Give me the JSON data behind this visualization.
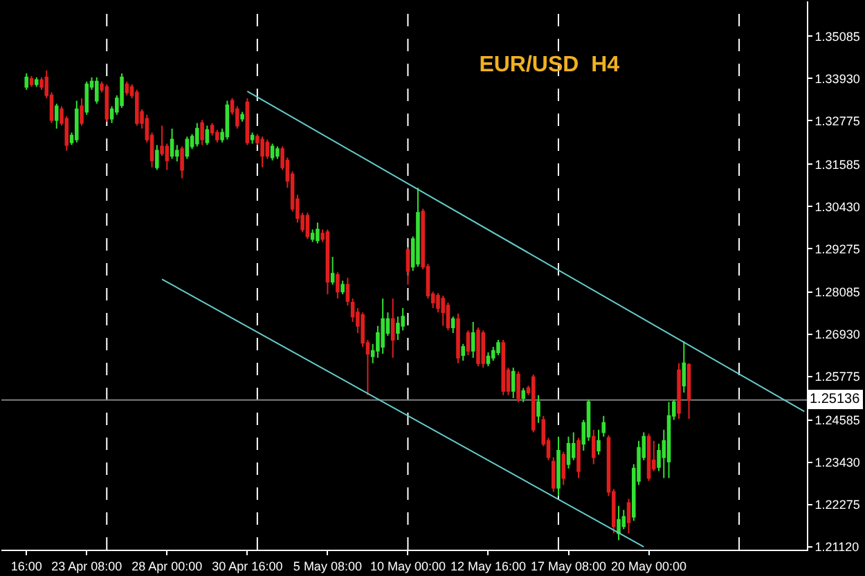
{
  "chart_data": {
    "type": "candlestick",
    "title": "EUR/USD  H4",
    "categories": [
      "16:00",
      null,
      null,
      null,
      null,
      null,
      null,
      null,
      null,
      null,
      null,
      null,
      "23 Apr 08:00",
      null,
      null,
      null,
      null,
      null,
      null,
      null,
      null,
      null,
      null,
      null,
      null,
      null,
      null,
      null,
      "28 Apr 00:00",
      null,
      null,
      null,
      null,
      null,
      null,
      null,
      null,
      null,
      null,
      null,
      null,
      null,
      null,
      null,
      "30 Apr 16:00",
      null,
      null,
      null,
      null,
      null,
      null,
      null,
      null,
      null,
      null,
      null,
      null,
      null,
      null,
      null,
      "5 May 08:00",
      null,
      null,
      null,
      null,
      null,
      null,
      null,
      null,
      null,
      null,
      null,
      null,
      null,
      null,
      null,
      "10 May 00:00",
      null,
      null,
      null,
      null,
      null,
      null,
      null,
      null,
      null,
      null,
      null,
      null,
      null,
      null,
      null,
      "12 May 16:00",
      null,
      null,
      null,
      null,
      null,
      null,
      null,
      null,
      null,
      null,
      null,
      null,
      null,
      null,
      null,
      "17 May 08:00",
      null,
      null,
      null,
      null,
      null,
      null,
      null,
      null,
      null,
      null,
      null,
      null,
      null,
      null,
      null,
      "20 May 00:00",
      null,
      null,
      null,
      null,
      null,
      null,
      null,
      null,
      null,
      null,
      null,
      null,
      null,
      null,
      null,
      null,
      null,
      null,
      null,
      null,
      null,
      null,
      null,
      null,
      null,
      null,
      null,
      null,
      null,
      null,
      null
    ],
    "ohlc": [
      [
        1.337,
        1.3407,
        1.3362,
        1.3396
      ],
      [
        1.3392,
        1.34,
        1.337,
        1.3377
      ],
      [
        1.3377,
        1.3396,
        1.337,
        1.3389
      ],
      [
        1.3389,
        1.3396,
        1.3362,
        1.337
      ],
      [
        1.3396,
        1.3415,
        1.3339,
        1.3347
      ],
      [
        1.3347,
        1.3355,
        1.3271,
        1.3279
      ],
      [
        1.3279,
        1.3324,
        1.3256,
        1.3317
      ],
      [
        1.3309,
        1.3317,
        1.3264,
        1.3271
      ],
      [
        1.3283,
        1.329,
        1.3196,
        1.3211
      ],
      [
        1.3218,
        1.3245,
        1.3211,
        1.3237
      ],
      [
        1.3226,
        1.3332,
        1.3218,
        1.3309
      ],
      [
        1.3317,
        1.3339,
        1.3264,
        1.3271
      ],
      [
        1.3302,
        1.3385,
        1.3294,
        1.3377
      ],
      [
        1.337,
        1.3396,
        1.3362,
        1.3385
      ],
      [
        1.3332,
        1.3396,
        1.3324,
        1.3385
      ],
      [
        1.3377,
        1.3385,
        1.3355,
        1.3362
      ],
      [
        1.337,
        1.3377,
        1.3275,
        1.3283
      ],
      [
        1.3283,
        1.3317,
        1.3271,
        1.3309
      ],
      [
        1.3302,
        1.3347,
        1.3294,
        1.3339
      ],
      [
        1.332,
        1.3407,
        1.3313,
        1.3396
      ],
      [
        1.3377,
        1.3385,
        1.3347,
        1.3355
      ],
      [
        1.337,
        1.3377,
        1.3339,
        1.3347
      ],
      [
        1.3355,
        1.3362,
        1.3264,
        1.3271
      ],
      [
        1.3302,
        1.3309,
        1.3256,
        1.3271
      ],
      [
        1.3283,
        1.3294,
        1.3218,
        1.3226
      ],
      [
        1.3237,
        1.3245,
        1.315,
        1.3169
      ],
      [
        1.315,
        1.3211,
        1.3143,
        1.3196
      ],
      [
        1.3207,
        1.3264,
        1.3181,
        1.3188
      ],
      [
        1.3207,
        1.3215,
        1.3143,
        1.3169
      ],
      [
        1.3181,
        1.3256,
        1.3173,
        1.3226
      ],
      [
        1.3181,
        1.3211,
        1.3166,
        1.3196
      ],
      [
        1.32,
        1.3207,
        1.312,
        1.3143
      ],
      [
        1.3181,
        1.3234,
        1.3173,
        1.3226
      ],
      [
        1.3207,
        1.3241,
        1.32,
        1.3234
      ],
      [
        1.3215,
        1.3271,
        1.3207,
        1.3256
      ],
      [
        1.3271,
        1.3279,
        1.3211,
        1.3226
      ],
      [
        1.3218,
        1.3264,
        1.3211,
        1.3252
      ],
      [
        1.3264,
        1.3271,
        1.3237,
        1.3245
      ],
      [
        1.3245,
        1.3252,
        1.3218,
        1.3226
      ],
      [
        1.3226,
        1.3256,
        1.3218,
        1.3245
      ],
      [
        1.3234,
        1.3332,
        1.3226,
        1.332
      ],
      [
        1.3332,
        1.3339,
        1.3294,
        1.3302
      ],
      [
        1.3309,
        1.3317,
        1.3256,
        1.3264
      ],
      [
        1.3283,
        1.3302,
        1.3275,
        1.3294
      ],
      [
        1.3328,
        1.3339,
        1.3211,
        1.3218
      ],
      [
        1.3226,
        1.3245,
        1.3215,
        1.3237
      ],
      [
        1.3234,
        1.3241,
        1.3211,
        1.3218
      ],
      [
        1.3226,
        1.3234,
        1.315,
        1.3181
      ],
      [
        1.3218,
        1.3226,
        1.3173,
        1.3181
      ],
      [
        1.3177,
        1.3215,
        1.3169,
        1.3207
      ],
      [
        1.3181,
        1.3207,
        1.3173,
        1.32
      ],
      [
        1.32,
        1.3207,
        1.3143,
        1.315
      ],
      [
        1.3169,
        1.3177,
        1.3094,
        1.3113
      ],
      [
        1.3131,
        1.3139,
        1.3029,
        1.3037
      ],
      [
        1.3063,
        1.3075,
        1.2999,
        1.3011
      ],
      [
        1.3018,
        1.3026,
        1.2973,
        1.298
      ],
      [
        1.3018,
        1.3026,
        1.2954,
        1.2961
      ],
      [
        1.2954,
        1.298,
        1.2946,
        1.2969
      ],
      [
        1.295,
        1.2999,
        1.2942,
        1.298
      ],
      [
        1.2969,
        1.298,
        1.2946,
        1.2954
      ],
      [
        1.2973,
        1.298,
        1.2803,
        1.2837
      ],
      [
        1.2837,
        1.2905,
        1.2829,
        1.2859
      ],
      [
        1.2856,
        1.2863,
        1.2791,
        1.281
      ],
      [
        1.281,
        1.284,
        1.2803,
        1.2829
      ],
      [
        1.2829,
        1.2848,
        1.2772,
        1.2784
      ],
      [
        1.278,
        1.2791,
        1.2727,
        1.2742
      ],
      [
        1.2753,
        1.2765,
        1.2697,
        1.2716
      ],
      [
        1.2746,
        1.2753,
        1.2659,
        1.267
      ],
      [
        1.267,
        1.2678,
        1.2527,
        1.264
      ],
      [
        1.2633,
        1.2667,
        1.2614,
        1.2648
      ],
      [
        1.2648,
        1.2716,
        1.2629,
        1.2697
      ],
      [
        1.2659,
        1.2791,
        1.264,
        1.2735
      ],
      [
        1.2697,
        1.2753,
        1.2689,
        1.2735
      ],
      [
        1.2735,
        1.2791,
        1.2629,
        1.2678
      ],
      [
        1.2697,
        1.2742,
        1.2678,
        1.2723
      ],
      [
        1.2716,
        1.2765,
        1.2704,
        1.2742
      ],
      [
        1.2924,
        1.2931,
        1.2829,
        1.2867
      ],
      [
        1.2878,
        1.2961,
        1.2867,
        1.2954
      ],
      [
        1.2886,
        1.3094,
        1.2878,
        1.3026
      ],
      [
        1.3029,
        1.3037,
        1.2871,
        1.2878
      ],
      [
        1.2878,
        1.2886,
        1.2791,
        1.2799
      ],
      [
        1.2803,
        1.281,
        1.2765,
        1.278
      ],
      [
        1.2799,
        1.2806,
        1.2753,
        1.2765
      ],
      [
        1.2791,
        1.2799,
        1.2716,
        1.2753
      ],
      [
        1.2772,
        1.278,
        1.2704,
        1.2712
      ],
      [
        1.2712,
        1.2742,
        1.2697,
        1.2735
      ],
      [
        1.2735,
        1.275,
        1.2614,
        1.2629
      ],
      [
        1.2636,
        1.2667,
        1.2621,
        1.2659
      ],
      [
        1.2697,
        1.2704,
        1.2636,
        1.2648
      ],
      [
        1.2648,
        1.2727,
        1.2629,
        1.2697
      ],
      [
        1.2704,
        1.2712,
        1.2606,
        1.2614
      ],
      [
        1.2697,
        1.2704,
        1.2602,
        1.2614
      ],
      [
        1.2614,
        1.2644,
        1.2606,
        1.2633
      ],
      [
        1.2629,
        1.2659,
        1.2621,
        1.2648
      ],
      [
        1.2644,
        1.2678,
        1.2636,
        1.267
      ],
      [
        1.267,
        1.2678,
        1.2527,
        1.2538
      ],
      [
        1.2595,
        1.2602,
        1.2527,
        1.2538
      ],
      [
        1.2538,
        1.2602,
        1.2519,
        1.2591
      ],
      [
        1.2583,
        1.2591,
        1.2508,
        1.2519
      ],
      [
        1.2519,
        1.2546,
        1.2508,
        1.2538
      ],
      [
        1.2546,
        1.2553,
        1.2527,
        1.2534
      ],
      [
        1.2576,
        1.2583,
        1.2425,
        1.2432
      ],
      [
        1.247,
        1.2527,
        1.2451,
        1.2508
      ],
      [
        1.2459,
        1.247,
        1.2387,
        1.2394
      ],
      [
        1.2402,
        1.241,
        1.2349,
        1.2357
      ],
      [
        1.2345,
        1.2357,
        1.2262,
        1.2273
      ],
      [
        1.2273,
        1.2413,
        1.2251,
        1.2375
      ],
      [
        1.2364,
        1.2372,
        1.2281,
        1.23
      ],
      [
        1.2338,
        1.2413,
        1.2326,
        1.2394
      ],
      [
        1.2357,
        1.2425,
        1.2349,
        1.2394
      ],
      [
        1.2402,
        1.241,
        1.23,
        1.2319
      ],
      [
        1.2394,
        1.2459,
        1.2375,
        1.2451
      ],
      [
        1.2413,
        1.2515,
        1.2402,
        1.2508
      ],
      [
        1.2413,
        1.2432,
        1.2338,
        1.2357
      ],
      [
        1.2375,
        1.2432,
        1.2364,
        1.2402
      ],
      [
        1.2425,
        1.247,
        1.2413,
        1.2451
      ],
      [
        1.241,
        1.2417,
        1.2251,
        1.2262
      ],
      [
        1.2262,
        1.227,
        1.2149,
        1.2168
      ],
      [
        1.2149,
        1.2224,
        1.213,
        1.2186
      ],
      [
        1.2168,
        1.2213,
        1.216,
        1.2194
      ],
      [
        1.2232,
        1.2243,
        1.2149,
        1.2179
      ],
      [
        1.2194,
        1.2338,
        1.2183,
        1.2326
      ],
      [
        1.2292,
        1.2402,
        1.2281,
        1.2383
      ],
      [
        1.2357,
        1.2425,
        1.2349,
        1.2413
      ],
      [
        1.2413,
        1.2421,
        1.2292,
        1.23
      ],
      [
        1.2349,
        1.2402,
        1.2319,
        1.2326
      ],
      [
        1.233,
        1.2394,
        1.2319,
        1.2375
      ],
      [
        1.2357,
        1.2432,
        1.23,
        1.2402
      ],
      [
        1.2345,
        1.2508,
        1.23,
        1.247
      ],
      [
        1.247,
        1.2515,
        1.2459,
        1.2508
      ],
      [
        1.2595,
        1.2614,
        1.2462,
        1.2478
      ],
      [
        1.2553,
        1.2674,
        1.2534,
        1.2614
      ],
      [
        1.261,
        1.2614,
        1.2462,
        1.2514
      ],
      null,
      null,
      null,
      null,
      null,
      null,
      null,
      null,
      null,
      null,
      null,
      null,
      null,
      null,
      null,
      null,
      null,
      null,
      null,
      null,
      null,
      null,
      null
    ],
    "series": [
      {
        "type": "line",
        "color": "#66cccc",
        "values": [
          null,
          null,
          null,
          null,
          null,
          null,
          null,
          null,
          null,
          null,
          null,
          null,
          null,
          null,
          null,
          null,
          null,
          null,
          null,
          null,
          null,
          null,
          null,
          null,
          null,
          null,
          null,
          null,
          null,
          null,
          null,
          null,
          null,
          null,
          null,
          null,
          null,
          null,
          null,
          null,
          null,
          null,
          null,
          null,
          1.3358,
          null,
          null,
          null,
          null,
          null,
          null,
          null,
          null,
          null,
          null,
          null,
          null,
          null,
          null,
          null,
          null,
          null,
          null,
          null,
          null,
          null,
          null,
          null,
          null,
          null,
          null,
          null,
          null,
          null,
          null,
          null,
          null,
          null,
          null,
          null,
          null,
          null,
          null,
          null,
          null,
          null,
          null,
          null,
          null,
          null,
          null,
          null,
          null,
          null,
          null,
          null,
          null,
          null,
          null,
          null,
          null,
          null,
          null,
          null,
          null,
          null,
          null,
          null,
          null,
          null,
          null,
          null,
          null,
          null,
          null,
          null,
          null,
          null,
          null,
          null,
          null,
          null,
          null,
          null,
          null,
          null,
          null,
          null,
          null,
          null,
          null,
          null,
          null,
          null,
          null,
          null,
          null,
          null,
          null,
          null,
          null,
          null,
          null,
          null,
          null,
          null,
          null,
          null,
          null,
          null,
          null,
          null,
          null,
          null,
          null,
          1.2482
        ]
      },
      {
        "type": "line",
        "color": "#66cccc",
        "values": [
          null,
          null,
          null,
          null,
          null,
          null,
          null,
          null,
          null,
          null,
          null,
          null,
          null,
          null,
          null,
          null,
          null,
          null,
          null,
          null,
          null,
          null,
          null,
          null,
          null,
          null,
          null,
          1.2844,
          null,
          null,
          null,
          null,
          null,
          null,
          null,
          null,
          null,
          null,
          null,
          null,
          null,
          null,
          null,
          null,
          null,
          null,
          null,
          null,
          null,
          null,
          null,
          null,
          null,
          null,
          null,
          null,
          null,
          null,
          null,
          null,
          null,
          null,
          null,
          null,
          null,
          null,
          null,
          null,
          null,
          null,
          null,
          null,
          null,
          null,
          null,
          null,
          null,
          null,
          null,
          null,
          null,
          null,
          null,
          null,
          null,
          null,
          null,
          null,
          null,
          null,
          null,
          null,
          null,
          null,
          null,
          null,
          null,
          null,
          null,
          null,
          null,
          null,
          null,
          null,
          null,
          null,
          null,
          null,
          null,
          null,
          null,
          null,
          null,
          null,
          null,
          null,
          null,
          null,
          null,
          null,
          null,
          null,
          null,
          1.2112,
          null,
          null,
          null,
          null,
          null,
          null,
          null,
          null,
          null,
          null,
          null,
          null,
          null,
          null,
          null,
          null,
          null,
          null,
          null,
          null,
          null,
          null,
          null,
          null,
          null,
          null,
          null,
          null,
          null,
          null,
          null,
          null
        ]
      }
    ],
    "ylim": [
      1.2104,
      1.3604
    ],
    "yticks": [
      1.35085,
      {
        "value": 1.3393,
        "label": "1.33930"
      },
      1.32775,
      1.31585,
      {
        "value": 1.3043,
        "label": "1.30430"
      },
      1.29275,
      1.28085,
      {
        "value": 1.2693,
        "label": "1.26930"
      },
      1.25775,
      1.24585,
      {
        "value": 1.2343,
        "label": "1.23430"
      },
      1.22275,
      {
        "value": 1.2112,
        "label": "1.21120"
      }
    ],
    "ref_lines": [
      {
        "axis": "y",
        "value": 1.25136,
        "label": "1.25136",
        "color": "#808080",
        "line_style": "solid"
      }
    ]
  }
}
